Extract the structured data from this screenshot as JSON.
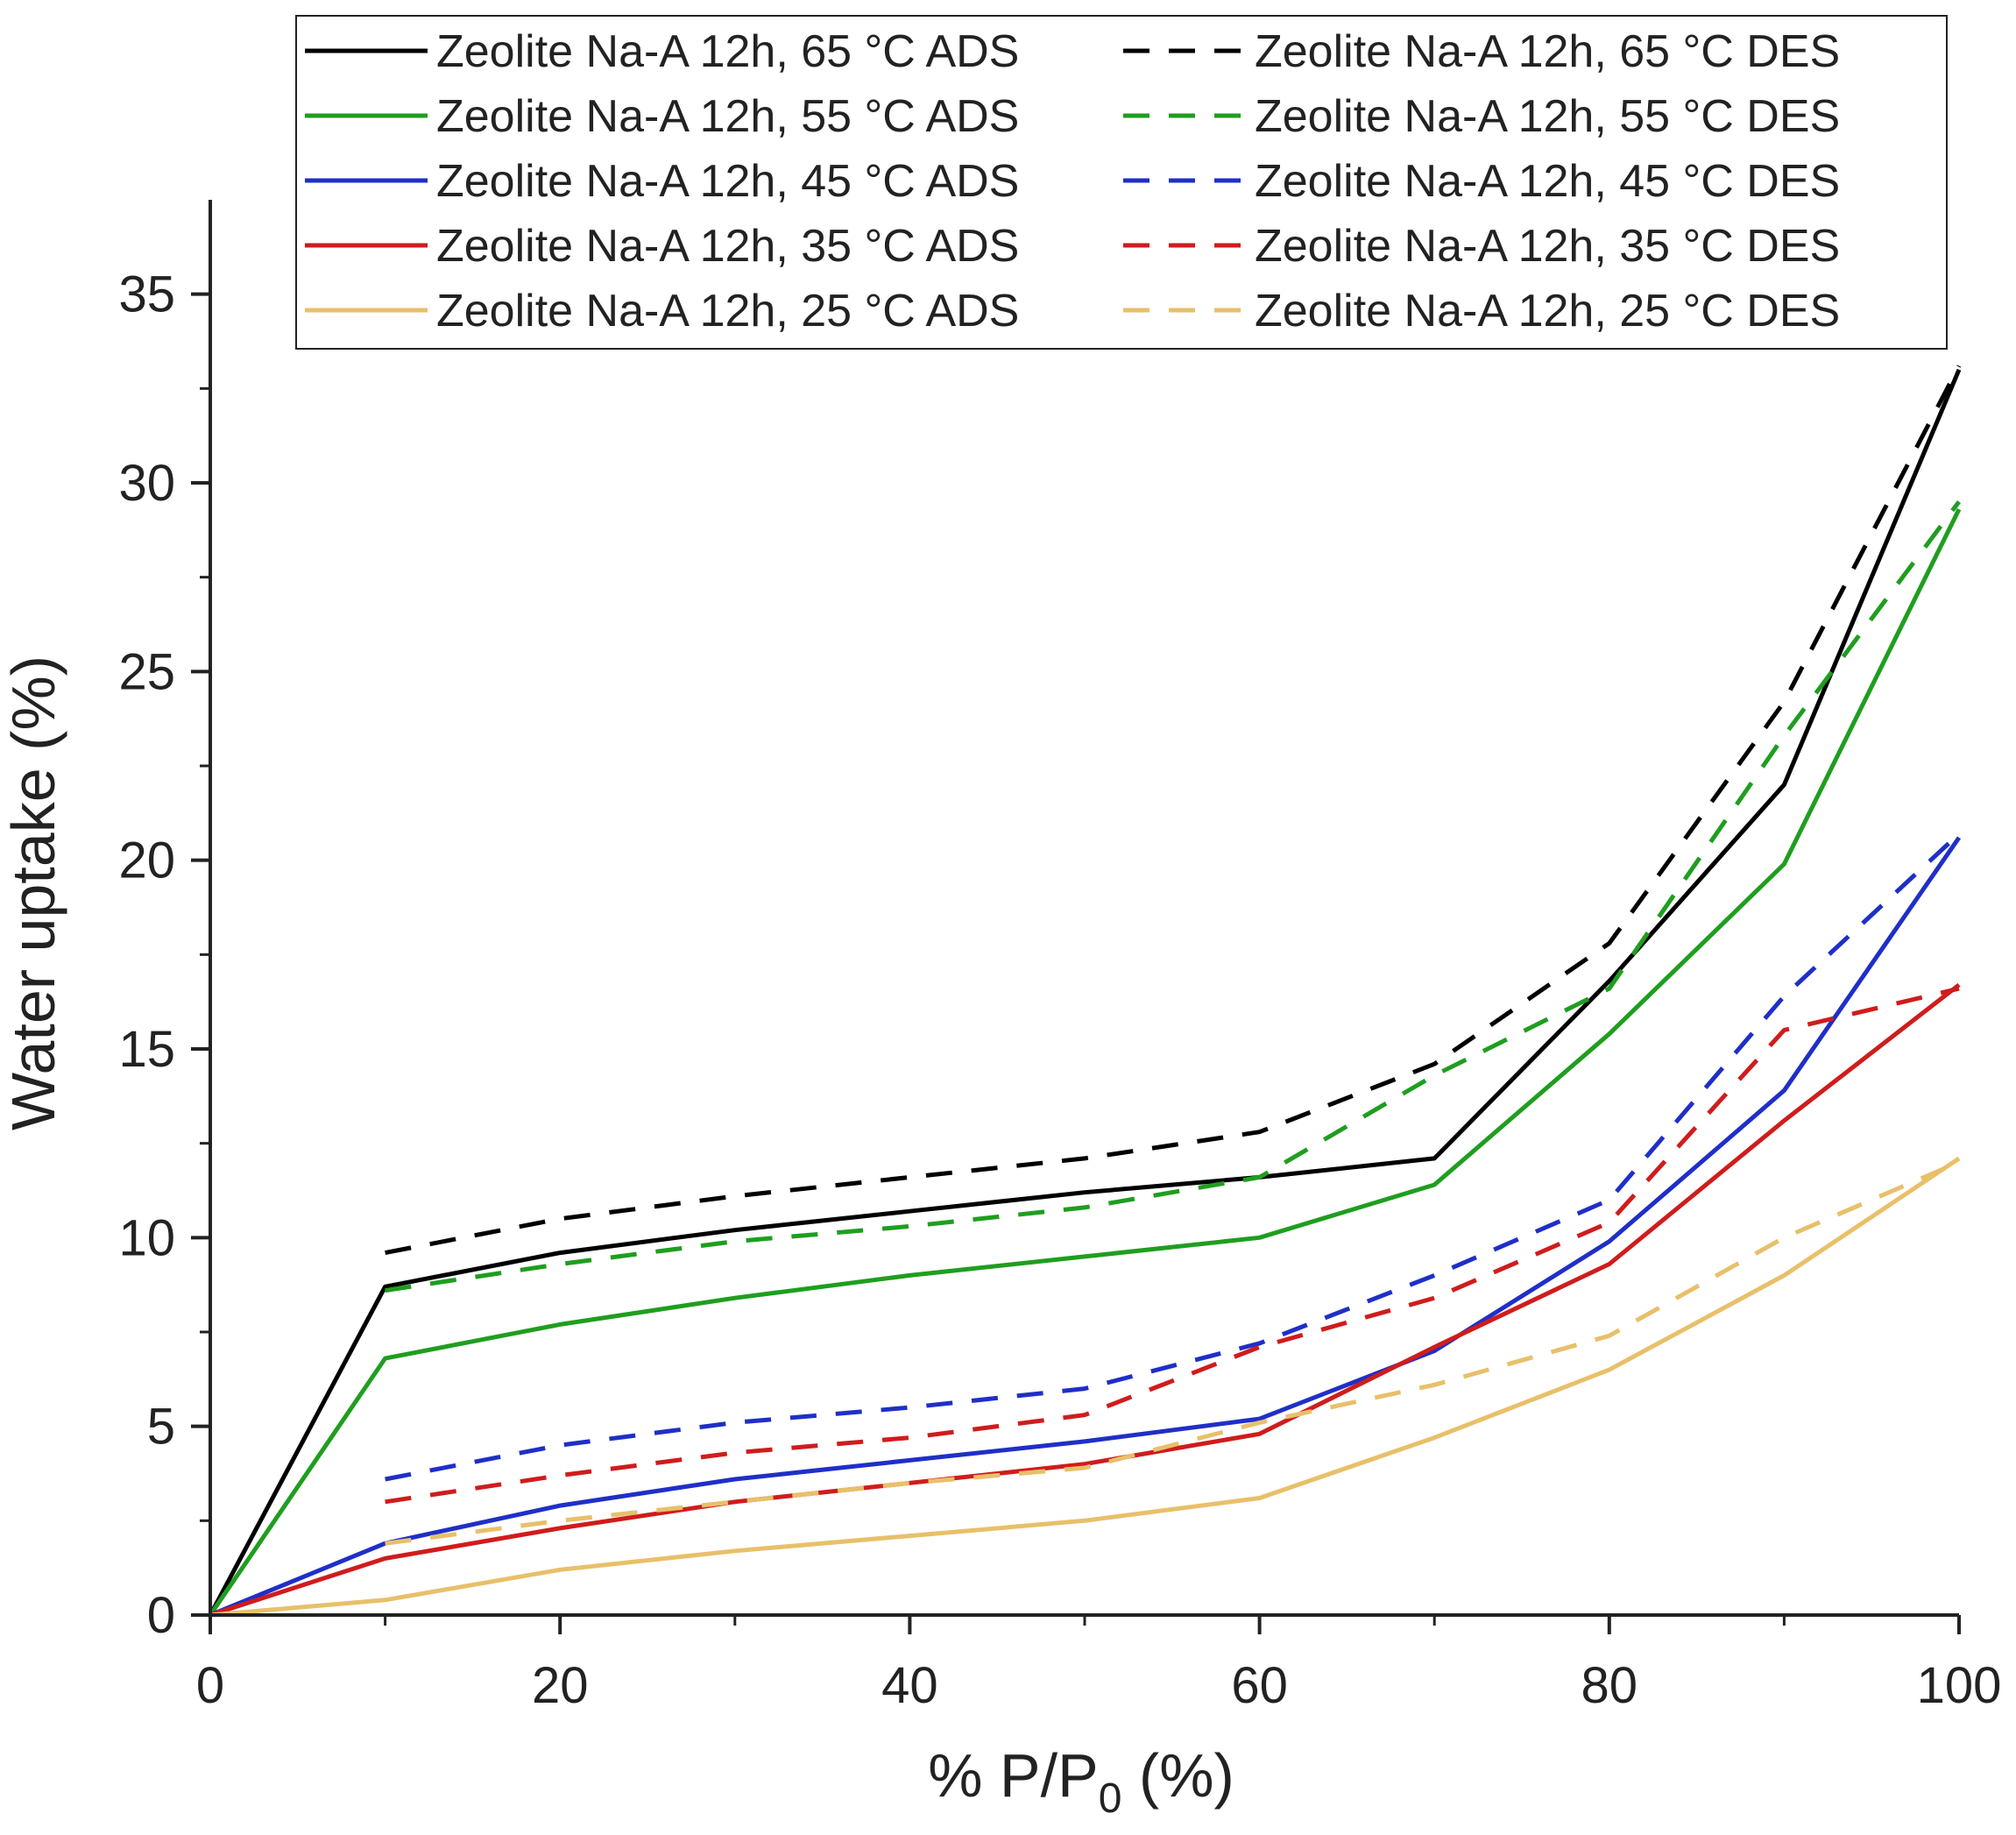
{
  "chart_data": {
    "type": "line",
    "title": "",
    "xlabel": {
      "prefix": "% P/P",
      "subscript": "0",
      "suffix": " (%)"
    },
    "ylabel": "Water uptake (%)",
    "xlim": [
      0,
      100
    ],
    "ylim": [
      0,
      37.5
    ],
    "xticks": [
      0,
      20,
      40,
      60,
      80,
      100
    ],
    "xtick_labels": [
      "0",
      "20",
      "40",
      "60",
      "80",
      "100"
    ],
    "yticks": [
      0,
      5,
      10,
      15,
      20,
      25,
      30,
      35
    ],
    "ytick_labels": [
      "0",
      "5",
      "10",
      "15",
      "20",
      "25",
      "30",
      "35"
    ],
    "legend_position": "top-right",
    "x": [
      0,
      10,
      20,
      30,
      40,
      50,
      60,
      70,
      80,
      90,
      100
    ],
    "series": [
      {
        "name": "Zeolite Na-A 12h, 65 °C ADS",
        "color": "#000000",
        "dash": false,
        "values": [
          0,
          8.7,
          9.6,
          10.2,
          10.7,
          11.2,
          11.6,
          12.1,
          16.8,
          22.0,
          33.0
        ]
      },
      {
        "name": "Zeolite Na-A 12h, 65 °C DES",
        "color": "#000000",
        "dash": true,
        "values": [
          null,
          9.6,
          10.5,
          11.1,
          11.6,
          12.1,
          12.8,
          14.6,
          17.8,
          24.2,
          33.1
        ]
      },
      {
        "name": "Zeolite Na-A 12h, 55 °C ADS",
        "color": "#1f9e1f",
        "dash": false,
        "values": [
          0,
          6.8,
          7.7,
          8.4,
          9.0,
          9.5,
          10.0,
          11.4,
          15.4,
          19.9,
          29.3
        ]
      },
      {
        "name": "Zeolite Na-A 12h, 55 °C DES",
        "color": "#1f9e1f",
        "dash": true,
        "values": [
          null,
          8.6,
          9.3,
          9.9,
          10.3,
          10.8,
          11.6,
          14.3,
          16.6,
          23.3,
          29.5
        ]
      },
      {
        "name": "Zeolite Na-A 12h, 45 °C ADS",
        "color": "#1f2fc8",
        "dash": false,
        "values": [
          0,
          1.9,
          2.9,
          3.6,
          4.1,
          4.6,
          5.2,
          7.0,
          9.9,
          13.9,
          20.6
        ]
      },
      {
        "name": "Zeolite Na-A 12h, 45 °C DES",
        "color": "#1f2fc8",
        "dash": true,
        "values": [
          null,
          3.6,
          4.5,
          5.1,
          5.5,
          6.0,
          7.2,
          9.0,
          11.0,
          16.4,
          20.7
        ]
      },
      {
        "name": "Zeolite Na-A 12h, 35 °C ADS",
        "color": "#d01c1c",
        "dash": false,
        "values": [
          0,
          1.5,
          2.3,
          3.0,
          3.5,
          4.0,
          4.8,
          7.1,
          9.3,
          13.1,
          16.7
        ]
      },
      {
        "name": "Zeolite Na-A 12h, 35 °C DES",
        "color": "#d01c1c",
        "dash": true,
        "values": [
          null,
          3.0,
          3.7,
          4.3,
          4.7,
          5.3,
          7.1,
          8.4,
          10.4,
          15.5,
          16.6
        ]
      },
      {
        "name": "Zeolite Na-A 12h, 25 °C ADS",
        "color": "#e8c06a",
        "dash": false,
        "values": [
          0,
          0.4,
          1.2,
          1.7,
          2.1,
          2.5,
          3.1,
          4.7,
          6.5,
          9.0,
          12.1
        ]
      },
      {
        "name": "Zeolite Na-A 12h, 25 °C DES",
        "color": "#e8c06a",
        "dash": true,
        "values": [
          null,
          1.9,
          2.5,
          3.0,
          3.5,
          3.9,
          5.1,
          6.1,
          7.4,
          10.0,
          12.0
        ]
      }
    ]
  }
}
